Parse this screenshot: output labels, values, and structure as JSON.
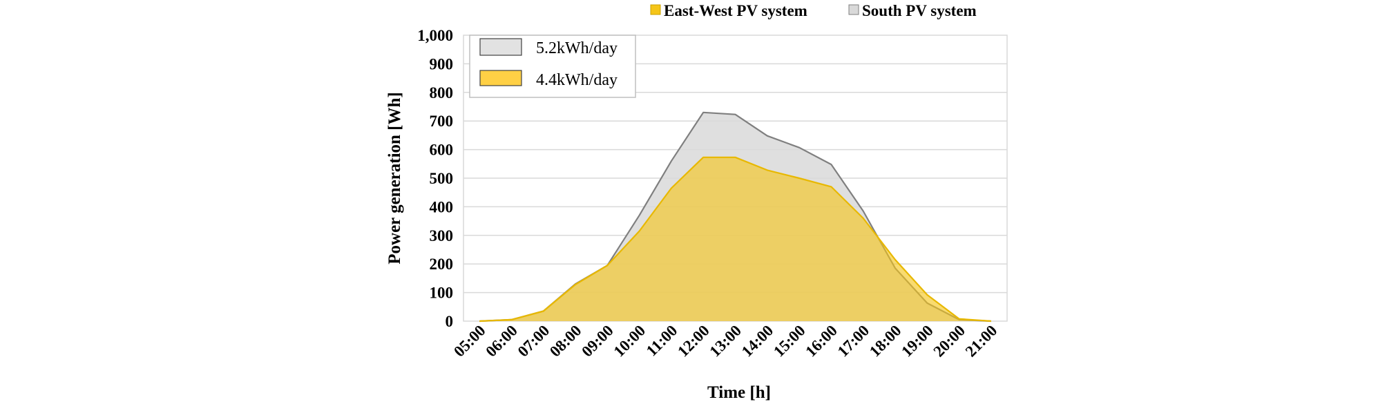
{
  "chart_data": {
    "type": "area",
    "title": "",
    "xlabel": "Time [h]",
    "ylabel": "Power generation [Wh]",
    "ylim": [
      0,
      1000
    ],
    "yticks": [
      "0",
      "100",
      "200",
      "300",
      "400",
      "500",
      "600",
      "700",
      "800",
      "900",
      "1,000"
    ],
    "categories": [
      "05:00",
      "06:00",
      "07:00",
      "08:00",
      "09:00",
      "10:00",
      "11:00",
      "12:00",
      "13:00",
      "14:00",
      "15:00",
      "16:00",
      "17:00",
      "18:00",
      "19:00",
      "20:00",
      "21:00"
    ],
    "grid": true,
    "legend_position": "top-right",
    "series": [
      {
        "name": "South PV system",
        "color": "#d9d9d9",
        "line_color": "#7f7f7f",
        "values": [
          0,
          5,
          35,
          130,
          195,
          370,
          560,
          730,
          723,
          648,
          607,
          548,
          385,
          185,
          63,
          5,
          0
        ]
      },
      {
        "name": "East-West PV system",
        "color": "#f5c518",
        "line_color": "#e8b800",
        "values": [
          0,
          5,
          35,
          128,
          195,
          315,
          465,
          573,
          573,
          528,
          500,
          470,
          360,
          215,
          92,
          8,
          0
        ]
      }
    ],
    "annotations": [
      {
        "text": "5.2kWh/day",
        "series": "South PV system"
      },
      {
        "text": "4.4kWh/day",
        "series": "East-West PV system"
      }
    ]
  }
}
